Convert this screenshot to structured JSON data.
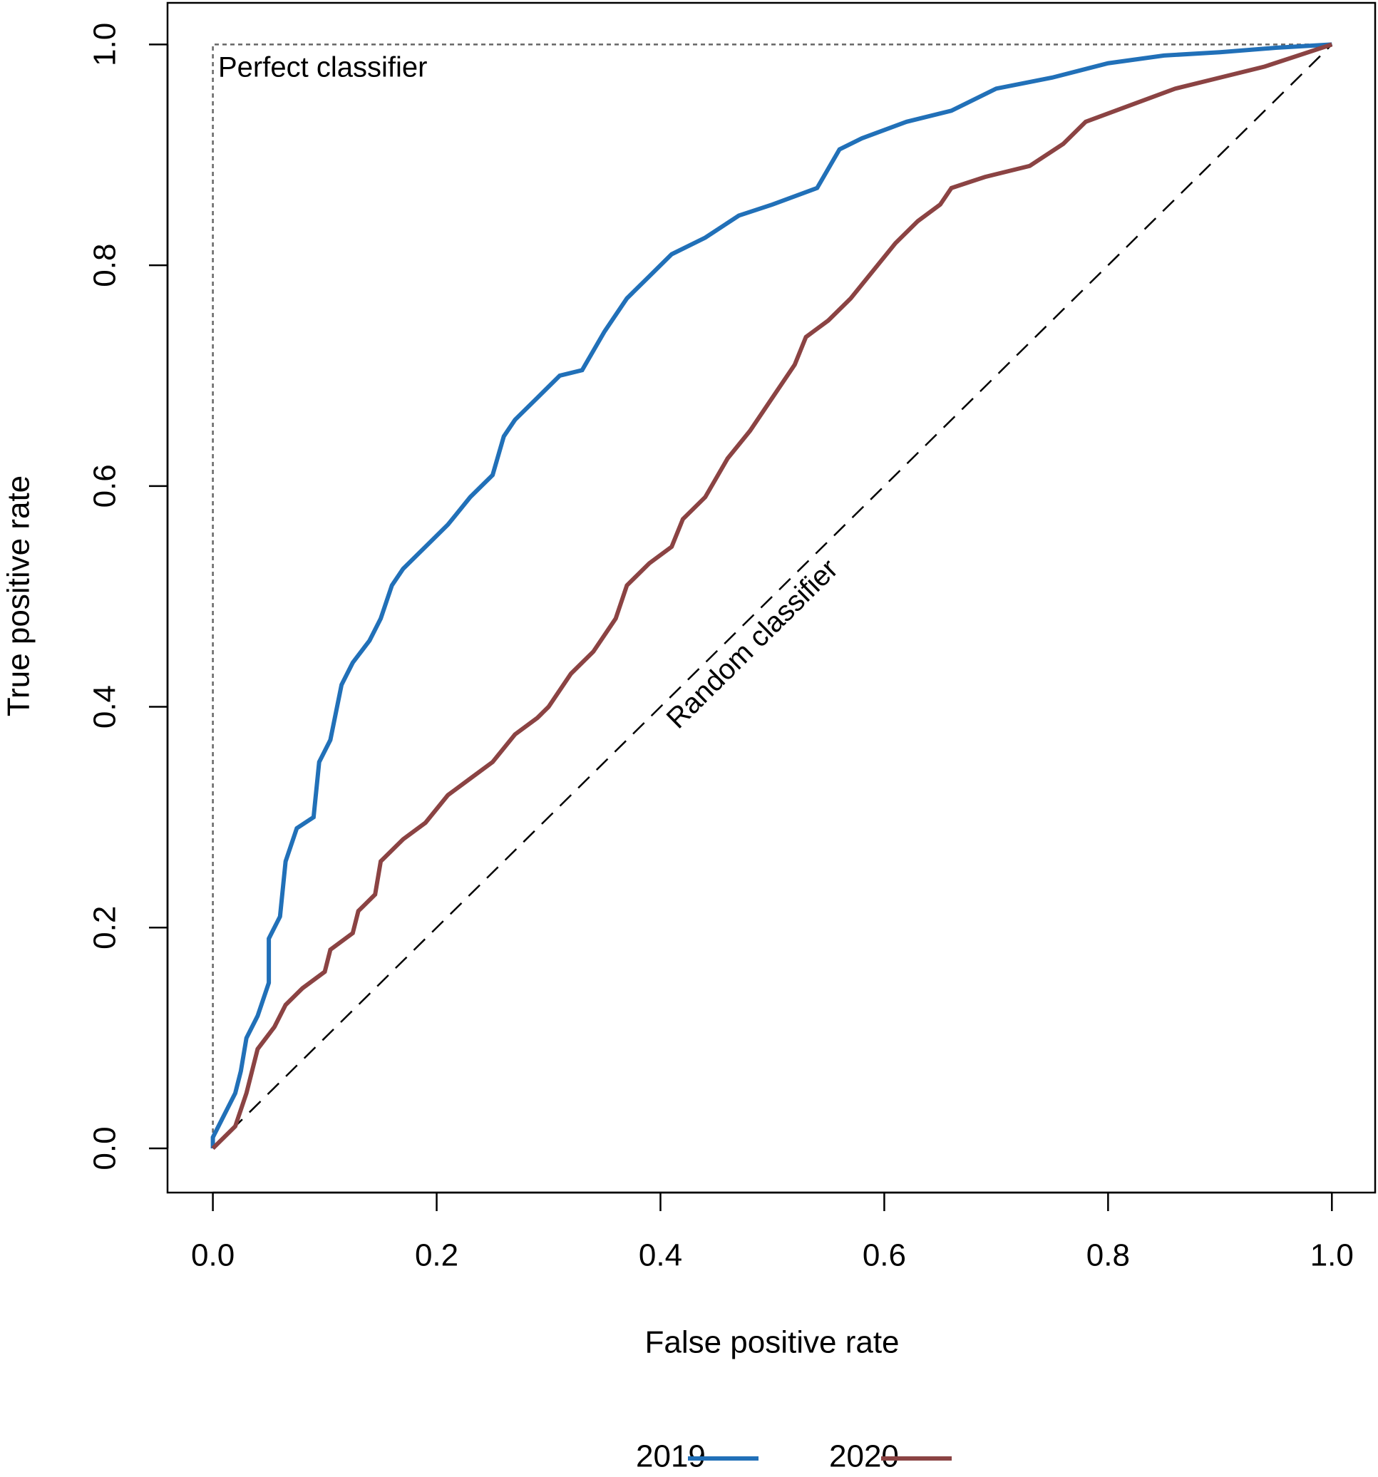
{
  "chart_data": {
    "type": "line",
    "xlabel": "False positive rate",
    "ylabel": "True positive rate",
    "annotations": [
      "Perfect classifier",
      "Random classifier"
    ],
    "xlim": [
      0,
      1
    ],
    "ylim": [
      0,
      1
    ],
    "xticks": [
      {
        "value": 0,
        "label": "0.0"
      },
      0.2,
      0.4,
      0.6,
      0.8,
      {
        "value": 1,
        "label": "1.0"
      }
    ],
    "yticks": [
      {
        "value": 0,
        "label": "0.0"
      },
      0.2,
      0.4,
      0.6,
      0.8,
      {
        "value": 1,
        "label": "1.0"
      }
    ],
    "series": [
      {
        "name": "2019",
        "color": "#2170b8",
        "x": [
          0,
          0,
          0.01,
          0.02,
          0.025,
          0.03,
          0.04,
          0.05,
          0.05,
          0.06,
          0.065,
          0.075,
          0.09,
          0.095,
          0.105,
          0.115,
          0.125,
          0.14,
          0.15,
          0.16,
          0.17,
          0.19,
          0.21,
          0.23,
          0.25,
          0.26,
          0.27,
          0.29,
          0.31,
          0.33,
          0.35,
          0.37,
          0.39,
          0.41,
          0.44,
          0.47,
          0.5,
          0.54,
          0.56,
          0.58,
          0.62,
          0.66,
          0.7,
          0.75,
          0.8,
          0.85,
          0.9,
          0.95,
          1
        ],
        "values": [
          0,
          0.01,
          0.03,
          0.05,
          0.07,
          0.1,
          0.12,
          0.15,
          0.19,
          0.21,
          0.26,
          0.29,
          0.3,
          0.35,
          0.37,
          0.42,
          0.44,
          0.46,
          0.48,
          0.51,
          0.525,
          0.545,
          0.565,
          0.59,
          0.61,
          0.645,
          0.66,
          0.68,
          0.7,
          0.705,
          0.74,
          0.77,
          0.79,
          0.81,
          0.825,
          0.845,
          0.855,
          0.87,
          0.905,
          0.915,
          0.93,
          0.94,
          0.96,
          0.97,
          0.983,
          0.99,
          0.993,
          0.997,
          1
        ]
      },
      {
        "name": "2020",
        "color": "#8b4343",
        "x": [
          0,
          0.01,
          0.02,
          0.03,
          0.04,
          0.055,
          0.065,
          0.08,
          0.1,
          0.105,
          0.125,
          0.13,
          0.145,
          0.15,
          0.17,
          0.19,
          0.21,
          0.23,
          0.25,
          0.27,
          0.29,
          0.3,
          0.32,
          0.34,
          0.36,
          0.37,
          0.39,
          0.41,
          0.42,
          0.44,
          0.46,
          0.48,
          0.5,
          0.52,
          0.53,
          0.55,
          0.57,
          0.59,
          0.61,
          0.63,
          0.65,
          0.66,
          0.69,
          0.73,
          0.76,
          0.78,
          0.82,
          0.86,
          0.9,
          0.94,
          0.97,
          1
        ],
        "values": [
          0,
          0.01,
          0.02,
          0.05,
          0.09,
          0.11,
          0.13,
          0.145,
          0.16,
          0.18,
          0.195,
          0.215,
          0.23,
          0.26,
          0.28,
          0.295,
          0.32,
          0.335,
          0.35,
          0.375,
          0.39,
          0.4,
          0.43,
          0.45,
          0.48,
          0.51,
          0.53,
          0.545,
          0.57,
          0.59,
          0.625,
          0.65,
          0.68,
          0.71,
          0.735,
          0.75,
          0.77,
          0.795,
          0.82,
          0.84,
          0.855,
          0.87,
          0.88,
          0.89,
          0.91,
          0.93,
          0.945,
          0.96,
          0.97,
          0.98,
          0.99,
          1
        ]
      }
    ]
  }
}
